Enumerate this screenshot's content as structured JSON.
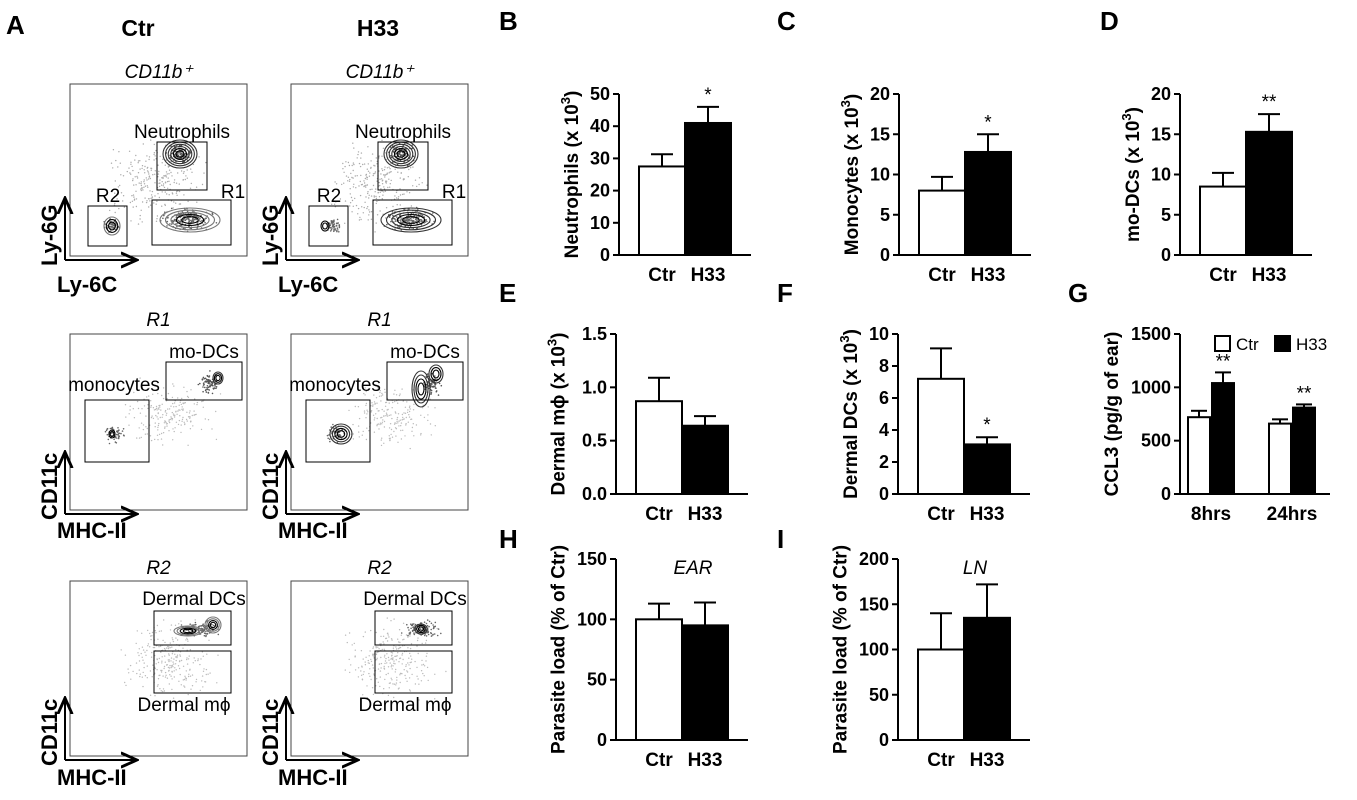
{
  "panel_letters": [
    "A",
    "B",
    "C",
    "D",
    "E",
    "F",
    "G",
    "H",
    "I"
  ],
  "flow": {
    "col_titles": [
      "Ctr",
      "H33"
    ],
    "rows": [
      {
        "title": "CD11b⁺",
        "ylabel": "Ly-6G",
        "xlabel": "Ly-6C",
        "gates": [
          "Neutrophils",
          "R1",
          "R2"
        ]
      },
      {
        "title": "R1",
        "ylabel": "CD11c",
        "xlabel": "MHC-II",
        "gates": [
          "mo-DCs",
          "monocytes"
        ]
      },
      {
        "title": "R2",
        "ylabel": "CD11c",
        "xlabel": "MHC-II",
        "gates": [
          "Dermal DCs",
          "Dermal mϕ"
        ]
      }
    ]
  },
  "chart_data": [
    {
      "panel": "B",
      "type": "bar",
      "categories": [
        "Ctr",
        "H33"
      ],
      "values": [
        27.5,
        41
      ],
      "errors": [
        3.8,
        5
      ],
      "ylabel": "Neutrophils (x 10",
      "ylabel_sup": "3",
      ")": ")",
      "ylim": [
        0,
        50
      ],
      "yticks": [
        "0",
        "10",
        "20",
        "30",
        "40",
        "50"
      ],
      "significance": [
        "",
        "*"
      ],
      "annotation": "",
      "fills": [
        "#ffffff",
        "#000000"
      ]
    },
    {
      "panel": "C",
      "type": "bar",
      "categories": [
        "Ctr",
        "H33"
      ],
      "values": [
        8,
        12.8
      ],
      "errors": [
        1.7,
        2.2
      ],
      "ylabel": "Monocytes (x 10",
      "ylabel_sup": "3",
      "ylim": [
        0,
        20
      ],
      "yticks": [
        "0",
        "5",
        "10",
        "15",
        "20"
      ],
      "significance": [
        "",
        "*"
      ],
      "annotation": "",
      "fills": [
        "#ffffff",
        "#000000"
      ]
    },
    {
      "panel": "D",
      "type": "bar",
      "categories": [
        "Ctr",
        "H33"
      ],
      "values": [
        8.5,
        15.3
      ],
      "errors": [
        1.7,
        2.2
      ],
      "ylabel": "mo-DCs (x 10",
      "ylabel_sup": "3",
      "ylim": [
        0,
        20
      ],
      "yticks": [
        "0",
        "5",
        "10",
        "15",
        "20"
      ],
      "significance": [
        "",
        "**"
      ],
      "annotation": "",
      "fills": [
        "#ffffff",
        "#000000"
      ]
    },
    {
      "panel": "E",
      "type": "bar",
      "categories": [
        "Ctr",
        "H33"
      ],
      "values": [
        0.87,
        0.64
      ],
      "errors": [
        0.22,
        0.09
      ],
      "ylabel": "Dermal mϕ (x 10",
      "ylabel_sup": "3",
      "ylim": [
        0,
        1.5
      ],
      "yticks": [
        "0.0",
        "0.5",
        "1.0",
        "1.5"
      ],
      "significance": [
        "",
        ""
      ],
      "annotation": "",
      "fills": [
        "#ffffff",
        "#000000"
      ]
    },
    {
      "panel": "F",
      "type": "bar",
      "categories": [
        "Ctr",
        "H33"
      ],
      "values": [
        7.2,
        3.1
      ],
      "errors": [
        1.9,
        0.45
      ],
      "ylabel": "Dermal DCs (x 10",
      "ylabel_sup": "3",
      "ylim": [
        0,
        10
      ],
      "yticks": [
        "0",
        "2",
        "4",
        "6",
        "8",
        "10"
      ],
      "significance": [
        "",
        "*"
      ],
      "annotation": "",
      "fills": [
        "#ffffff",
        "#000000"
      ]
    },
    {
      "panel": "G",
      "type": "bar",
      "categories": [
        "8hrs",
        "24hrs"
      ],
      "series": [
        {
          "name": "Ctr",
          "values": [
            720,
            660
          ],
          "errors": [
            60,
            40
          ],
          "fill": "#ffffff"
        },
        {
          "name": "H33",
          "values": [
            1040,
            810
          ],
          "errors": [
            100,
            30
          ],
          "fill": "#000000"
        }
      ],
      "ylabel": "CCL3 (pg/g of ear)",
      "ylim": [
        0,
        1500
      ],
      "yticks": [
        "0",
        "500",
        "1000",
        "1500"
      ],
      "significance": [
        [
          "",
          "**"
        ],
        [
          "",
          "**"
        ]
      ],
      "legend": "top"
    },
    {
      "panel": "H",
      "type": "bar",
      "categories": [
        "Ctr",
        "H33"
      ],
      "values": [
        100,
        95
      ],
      "errors": [
        13,
        19
      ],
      "ylabel": "Parasite load (% of Ctr)",
      "ylim": [
        0,
        150
      ],
      "yticks": [
        "0",
        "50",
        "100",
        "150"
      ],
      "significance": [
        "",
        ""
      ],
      "annotation": "EAR",
      "fills": [
        "#ffffff",
        "#000000"
      ]
    },
    {
      "panel": "I",
      "type": "bar",
      "categories": [
        "Ctr",
        "H33"
      ],
      "values": [
        100,
        135
      ],
      "errors": [
        40,
        37
      ],
      "ylabel": "Parasite load (% of Ctr)",
      "ylim": [
        0,
        200
      ],
      "yticks": [
        "0",
        "50",
        "100",
        "150",
        "200"
      ],
      "significance": [
        "",
        ""
      ],
      "annotation": "LN",
      "fills": [
        "#ffffff",
        "#000000"
      ]
    }
  ]
}
